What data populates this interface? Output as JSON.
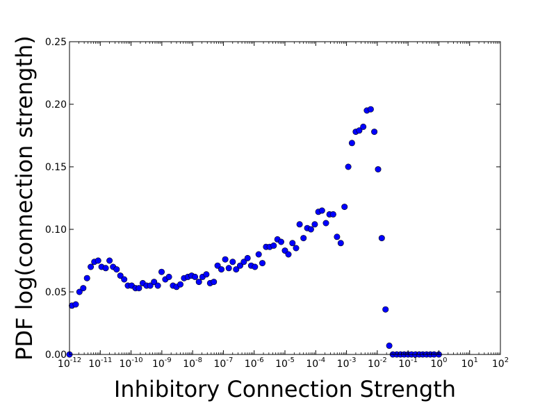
{
  "chart_data": {
    "type": "scatter",
    "title": "",
    "xlabel": "Inhibitory Connection Strength",
    "ylabel": "PDF log(connection strength)",
    "xscale": "log",
    "xlim": [
      1e-12,
      100
    ],
    "ylim": [
      0,
      0.25
    ],
    "grid": false,
    "legend": "none",
    "marker_color": "#0000ff",
    "marker_edge_color": "#000000",
    "x_ticks": [
      {
        "value": 1e-12,
        "base": "10",
        "exp": "-12"
      },
      {
        "value": 1e-11,
        "base": "10",
        "exp": "-11"
      },
      {
        "value": 1e-10,
        "base": "10",
        "exp": "-10"
      },
      {
        "value": 1e-09,
        "base": "10",
        "exp": "-9"
      },
      {
        "value": 1e-08,
        "base": "10",
        "exp": "-8"
      },
      {
        "value": 1e-07,
        "base": "10",
        "exp": "-7"
      },
      {
        "value": 1e-06,
        "base": "10",
        "exp": "-6"
      },
      {
        "value": 1e-05,
        "base": "10",
        "exp": "-5"
      },
      {
        "value": 0.0001,
        "base": "10",
        "exp": "-4"
      },
      {
        "value": 0.001,
        "base": "10",
        "exp": "-3"
      },
      {
        "value": 0.01,
        "base": "10",
        "exp": "-2"
      },
      {
        "value": 0.1,
        "base": "10",
        "exp": "-1"
      },
      {
        "value": 1,
        "base": "10",
        "exp": "0"
      },
      {
        "value": 10,
        "base": "10",
        "exp": "1"
      },
      {
        "value": 100,
        "base": "10",
        "exp": "2"
      }
    ],
    "y_ticks": [
      {
        "value": 0.0,
        "label": "0.00"
      },
      {
        "value": 0.05,
        "label": "0.05"
      },
      {
        "value": 0.1,
        "label": "0.10"
      },
      {
        "value": 0.15,
        "label": "0.15"
      },
      {
        "value": 0.2,
        "label": "0.20"
      },
      {
        "value": 0.25,
        "label": "0.25"
      }
    ],
    "points": [
      [
        1e-12,
        0.0
      ],
      [
        1.2e-12,
        0.039
      ],
      [
        1.6e-12,
        0.04
      ],
      [
        2.1e-12,
        0.05
      ],
      [
        2.8e-12,
        0.053
      ],
      [
        3.7e-12,
        0.061
      ],
      [
        4.9e-12,
        0.07
      ],
      [
        6.4e-12,
        0.074
      ],
      [
        8.5e-12,
        0.075
      ],
      [
        1.1e-11,
        0.07
      ],
      [
        1.5e-11,
        0.069
      ],
      [
        2e-11,
        0.075
      ],
      [
        2.6e-11,
        0.07
      ],
      [
        3.4e-11,
        0.068
      ],
      [
        4.5e-11,
        0.063
      ],
      [
        6e-11,
        0.06
      ],
      [
        7.9e-11,
        0.055
      ],
      [
        1.05e-10,
        0.055
      ],
      [
        1.4e-10,
        0.053
      ],
      [
        1.8e-10,
        0.053
      ],
      [
        2.4e-10,
        0.057
      ],
      [
        3.2e-10,
        0.055
      ],
      [
        4.2e-10,
        0.055
      ],
      [
        5.6e-10,
        0.058
      ],
      [
        7.4e-10,
        0.055
      ],
      [
        9.8e-10,
        0.066
      ],
      [
        1.3e-09,
        0.06
      ],
      [
        1.7e-09,
        0.062
      ],
      [
        2.3e-09,
        0.055
      ],
      [
        3e-09,
        0.054
      ],
      [
        4e-09,
        0.056
      ],
      [
        5.3e-09,
        0.061
      ],
      [
        7e-09,
        0.062
      ],
      [
        9.3e-09,
        0.063
      ],
      [
        1.2e-08,
        0.062
      ],
      [
        1.6e-08,
        0.058
      ],
      [
        2.1e-08,
        0.062
      ],
      [
        2.8e-08,
        0.064
      ],
      [
        3.7e-08,
        0.057
      ],
      [
        4.9e-08,
        0.058
      ],
      [
        6.5e-08,
        0.071
      ],
      [
        8.6e-08,
        0.068
      ],
      [
        1.15e-07,
        0.076
      ],
      [
        1.5e-07,
        0.069
      ],
      [
        2e-07,
        0.074
      ],
      [
        2.6e-07,
        0.068
      ],
      [
        3.5e-07,
        0.071
      ],
      [
        4.6e-07,
        0.074
      ],
      [
        6.1e-07,
        0.077
      ],
      [
        8e-07,
        0.071
      ],
      [
        1.06e-06,
        0.07
      ],
      [
        1.4e-06,
        0.08
      ],
      [
        1.85e-06,
        0.073
      ],
      [
        2.45e-06,
        0.086
      ],
      [
        3.2e-06,
        0.086
      ],
      [
        4.3e-06,
        0.087
      ],
      [
        5.7e-06,
        0.092
      ],
      [
        7.5e-06,
        0.09
      ],
      [
        1e-05,
        0.083
      ],
      [
        1.3e-05,
        0.08
      ],
      [
        1.75e-05,
        0.089
      ],
      [
        2.3e-05,
        0.085
      ],
      [
        3e-05,
        0.104
      ],
      [
        4e-05,
        0.093
      ],
      [
        5.3e-05,
        0.101
      ],
      [
        7e-05,
        0.1
      ],
      [
        9.3e-05,
        0.104
      ],
      [
        0.000122,
        0.114
      ],
      [
        0.00016,
        0.115
      ],
      [
        0.000215,
        0.105
      ],
      [
        0.00028,
        0.112
      ],
      [
        0.00037,
        0.112
      ],
      [
        0.00049,
        0.094
      ],
      [
        0.00065,
        0.089
      ],
      [
        0.00086,
        0.118
      ],
      [
        0.00114,
        0.15
      ],
      [
        0.0015,
        0.169
      ],
      [
        0.002,
        0.178
      ],
      [
        0.0026,
        0.179
      ],
      [
        0.0035,
        0.182
      ],
      [
        0.0046,
        0.195
      ],
      [
        0.0061,
        0.196
      ],
      [
        0.008,
        0.178
      ],
      [
        0.0106,
        0.148
      ],
      [
        0.014,
        0.093
      ],
      [
        0.0185,
        0.036
      ],
      [
        0.0245,
        0.007
      ],
      [
        0.032,
        0.0
      ],
      [
        0.043,
        0.0
      ],
      [
        0.057,
        0.0
      ],
      [
        0.075,
        0.0
      ],
      [
        0.1,
        0.0
      ],
      [
        0.13,
        0.0
      ],
      [
        0.175,
        0.0
      ],
      [
        0.23,
        0.0
      ],
      [
        0.3,
        0.0
      ],
      [
        0.4,
        0.0
      ],
      [
        0.53,
        0.0
      ],
      [
        0.7,
        0.0
      ],
      [
        1.0,
        0.0
      ]
    ]
  }
}
